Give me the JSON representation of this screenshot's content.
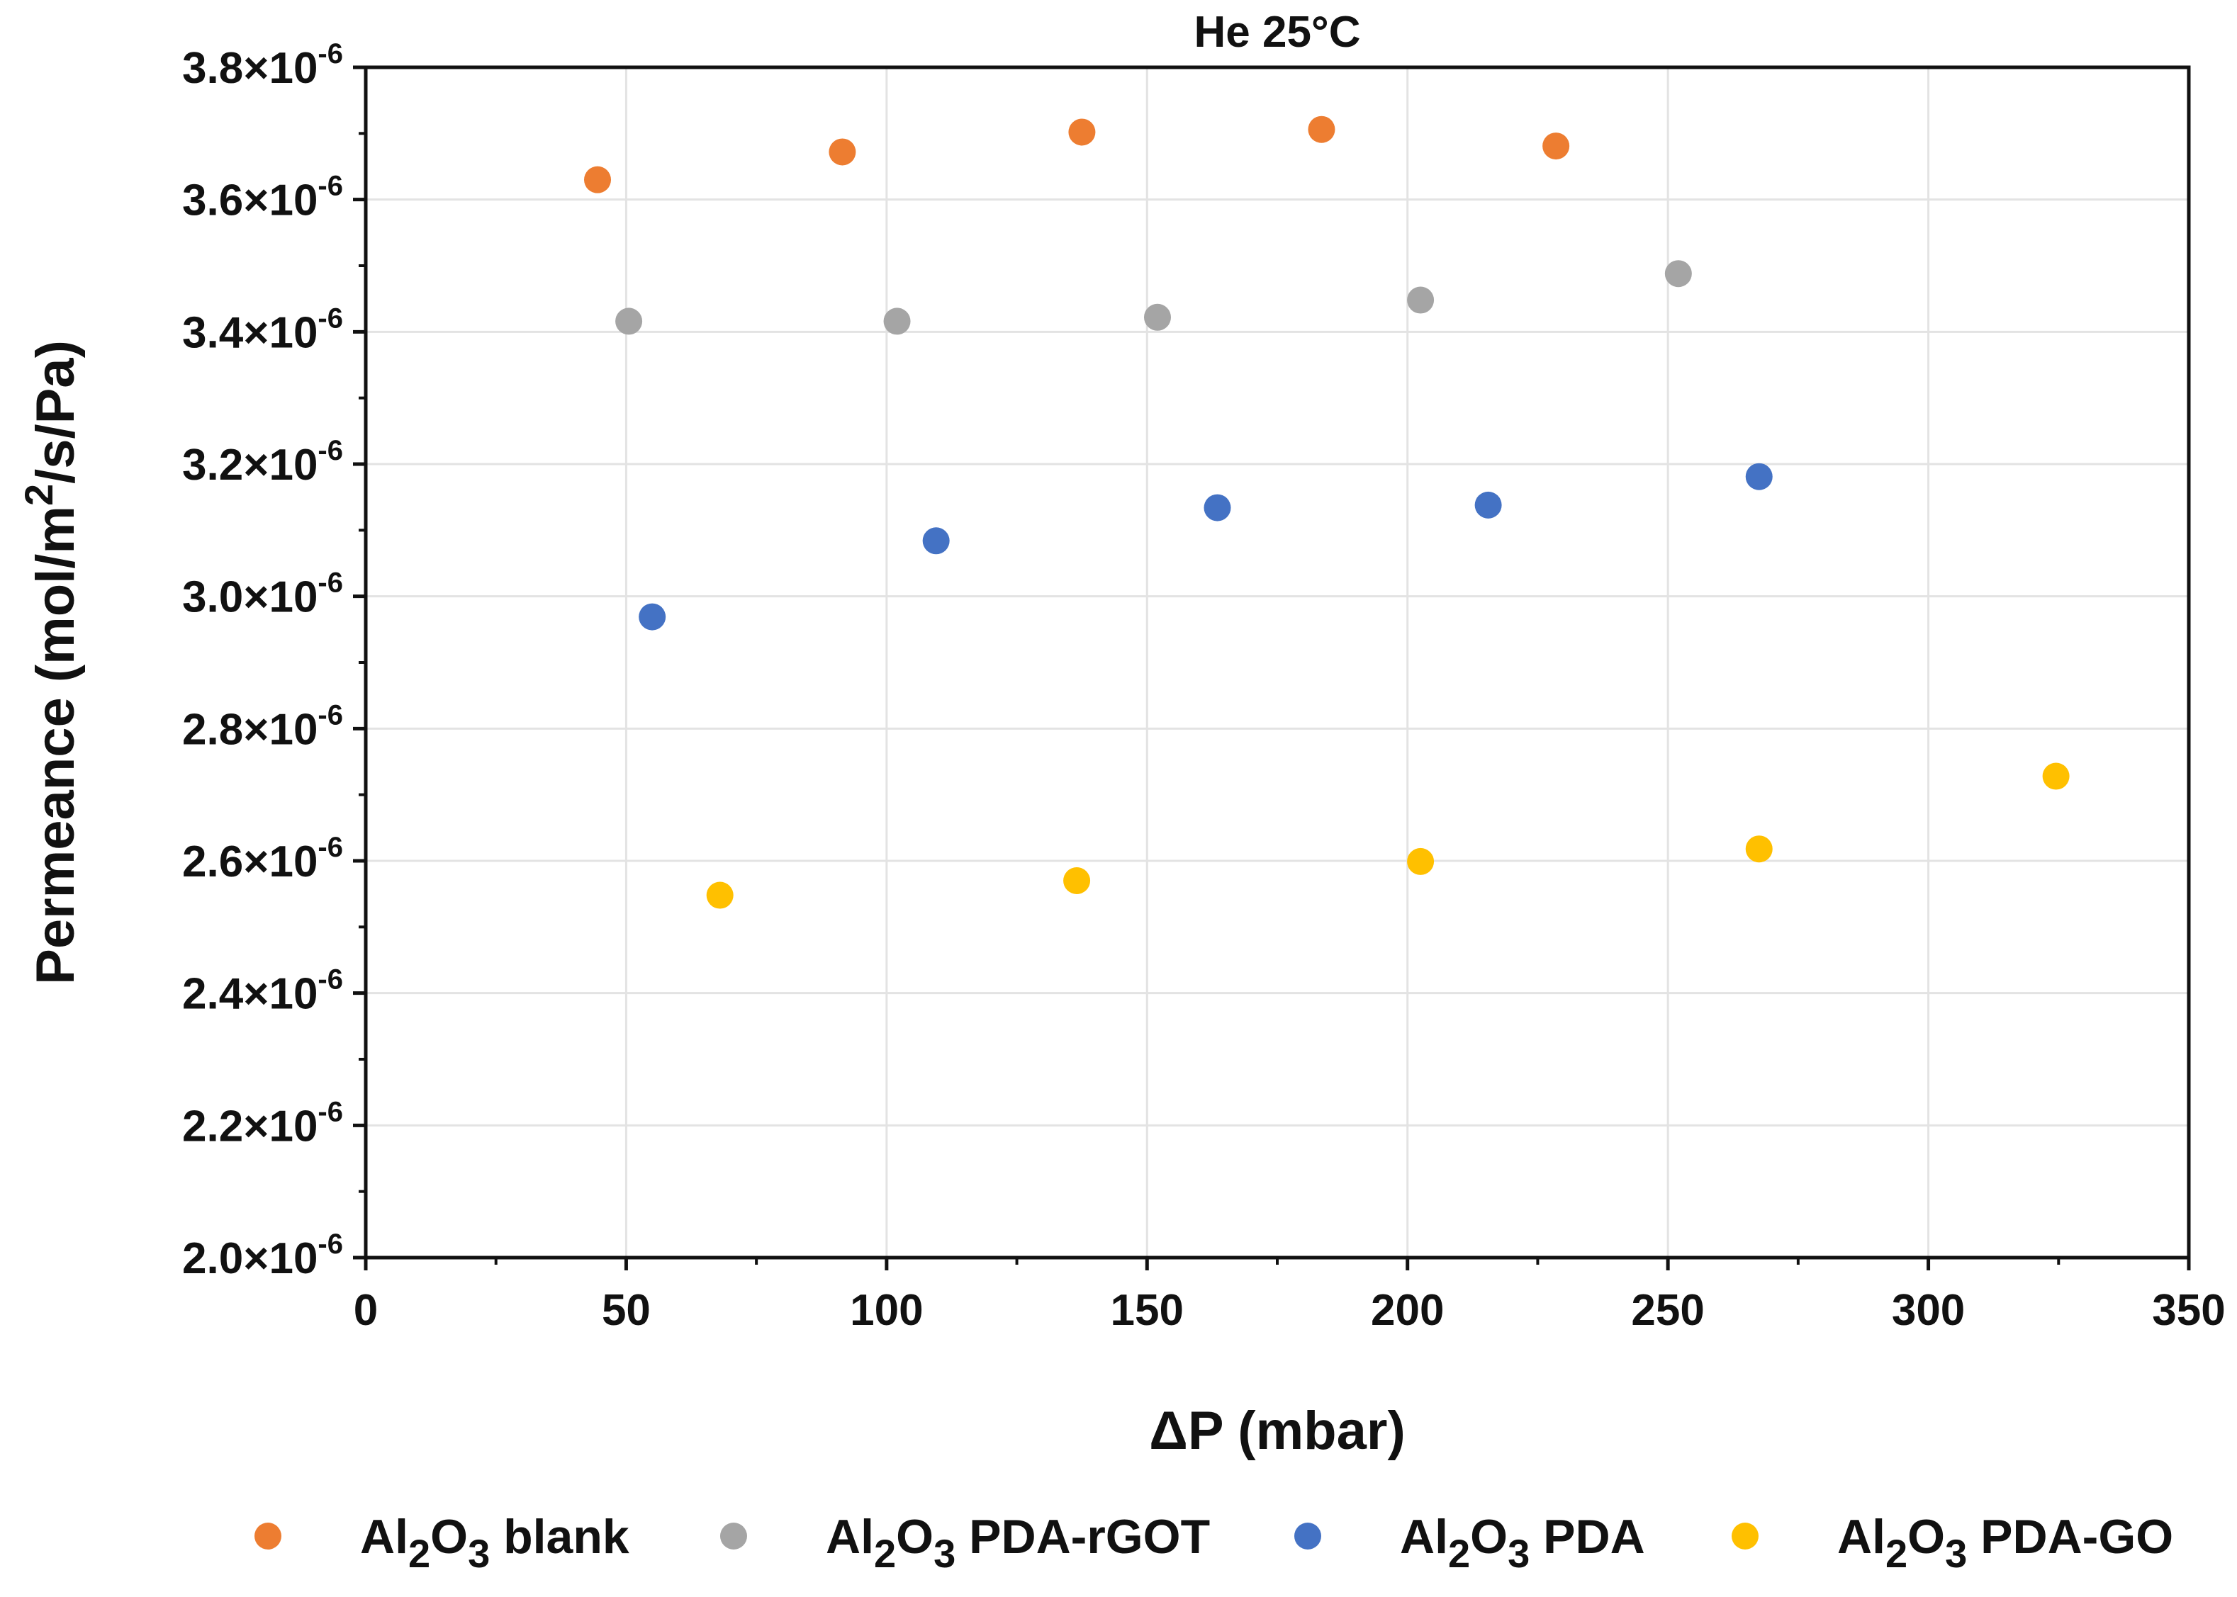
{
  "chart_data": {
    "type": "scatter",
    "title": "He 25°C",
    "xlabel": "ΔP (mbar)",
    "ylabel": {
      "prefix": "Permeance (mol/m",
      "sup": "2",
      "suffix": "/s/Pa)"
    },
    "xlim": [
      0,
      350
    ],
    "ylim": [
      2e-06,
      3.8e-06
    ],
    "grid": true,
    "legend_position": "bottom",
    "x_ticks": [
      {
        "value": 0,
        "label": "0"
      },
      {
        "value": 50,
        "label": "50"
      },
      {
        "value": 100,
        "label": "100"
      },
      {
        "value": 150,
        "label": "150"
      },
      {
        "value": 200,
        "label": "200"
      },
      {
        "value": 250,
        "label": "250"
      },
      {
        "value": 300,
        "label": "300"
      },
      {
        "value": 350,
        "label": "350"
      }
    ],
    "y_ticks": [
      {
        "value": 2e-06,
        "mantissa": "2.0",
        "base": "×10",
        "exp": "-6"
      },
      {
        "value": 2.2e-06,
        "mantissa": "2.2",
        "base": "×10",
        "exp": "-6"
      },
      {
        "value": 2.4e-06,
        "mantissa": "2.4",
        "base": "×10",
        "exp": "-6"
      },
      {
        "value": 2.6e-06,
        "mantissa": "2.6",
        "base": "×10",
        "exp": "-6"
      },
      {
        "value": 2.8e-06,
        "mantissa": "2.8",
        "base": "×10",
        "exp": "-6"
      },
      {
        "value": 3e-06,
        "mantissa": "3.0",
        "base": "×10",
        "exp": "-6"
      },
      {
        "value": 3.2e-06,
        "mantissa": "3.2",
        "base": "×10",
        "exp": "-6"
      },
      {
        "value": 3.4e-06,
        "mantissa": "3.4",
        "base": "×10",
        "exp": "-6"
      },
      {
        "value": 3.6e-06,
        "mantissa": "3.6",
        "base": "×10",
        "exp": "-6"
      },
      {
        "value": 3.8e-06,
        "mantissa": "3.8",
        "base": "×10",
        "exp": "-6"
      }
    ],
    "series": [
      {
        "name": "Al2O3 blank",
        "legend_parts": [
          "Al",
          "2",
          "O",
          "3",
          " blank"
        ],
        "color": "#ed7d31",
        "x": [
          44.5,
          91.5,
          137.5,
          183.5,
          228.5
        ],
        "y": [
          3.63e-06,
          3.672e-06,
          3.702e-06,
          3.706e-06,
          3.681e-06
        ]
      },
      {
        "name": "Al2O3 PDA-rGOT",
        "legend_parts": [
          "Al",
          "2",
          "O",
          "3",
          " PDA-rGOT"
        ],
        "color": "#a5a5a5",
        "x": [
          50.5,
          102.0,
          152.0,
          202.5,
          252.0
        ],
        "y": [
          3.416e-06,
          3.416e-06,
          3.422e-06,
          3.448e-06,
          3.488e-06
        ]
      },
      {
        "name": "Al2O3 PDA",
        "legend_parts": [
          "Al",
          "2",
          "O",
          "3",
          " PDA"
        ],
        "color": "#4472c4",
        "x": [
          55.0,
          109.5,
          163.5,
          215.5,
          267.5
        ],
        "y": [
          2.969e-06,
          3.084e-06,
          3.134e-06,
          3.138e-06,
          3.181e-06
        ]
      },
      {
        "name": "Al2O3 PDA-GO",
        "legend_parts": [
          "Al",
          "2",
          "O",
          "3",
          " PDA-GO"
        ],
        "color": "#ffc000",
        "x": [
          68.0,
          136.5,
          202.5,
          267.5,
          324.5
        ],
        "y": [
          2.548e-06,
          2.57e-06,
          2.599e-06,
          2.618e-06,
          2.728e-06
        ]
      }
    ]
  }
}
